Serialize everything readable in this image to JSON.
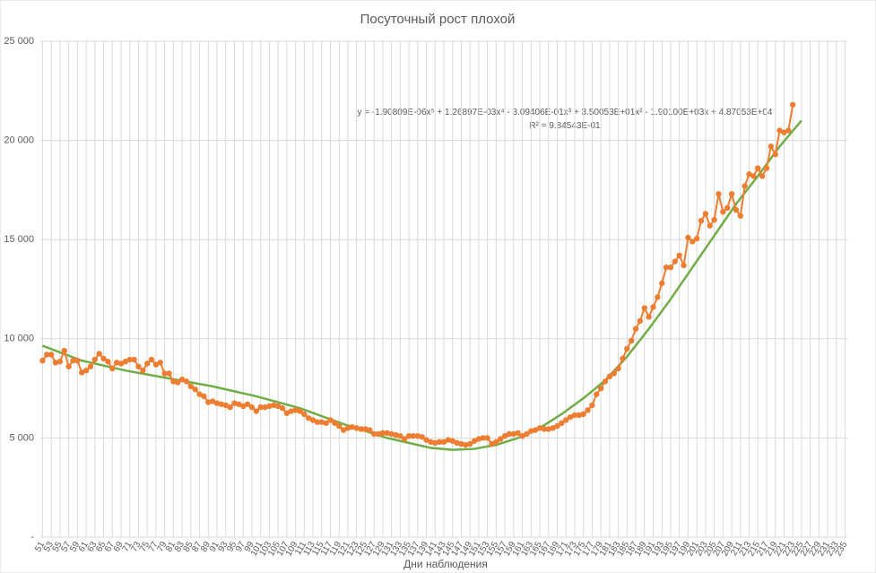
{
  "chart_data": {
    "type": "line",
    "title": "Посуточный рост плохой",
    "x_label": "Дни наблюдения",
    "annotations": [
      "y = -1.90809E-06x⁵ + 1.26897E-03x⁴ - 3.09406E-01x³ + 3.50053E+01x² - 1.90100E+03x + 4.87053E+04",
      "R² = 9.84543E-01"
    ],
    "xlim": [
      50.5,
      235.5
    ],
    "xticks": [
      51,
      53,
      55,
      57,
      59,
      61,
      63,
      65,
      67,
      69,
      71,
      73,
      75,
      77,
      79,
      81,
      83,
      85,
      87,
      89,
      91,
      93,
      95,
      97,
      99,
      101,
      103,
      105,
      107,
      109,
      111,
      113,
      115,
      117,
      119,
      121,
      123,
      125,
      127,
      129,
      131,
      133,
      135,
      137,
      139,
      141,
      143,
      145,
      147,
      149,
      151,
      153,
      155,
      157,
      159,
      161,
      163,
      165,
      167,
      169,
      171,
      173,
      175,
      177,
      179,
      181,
      183,
      185,
      187,
      189,
      191,
      193,
      195,
      197,
      199,
      201,
      203,
      205,
      207,
      209,
      211,
      213,
      215,
      217,
      219,
      221,
      223,
      225,
      227,
      229,
      231,
      233,
      235
    ],
    "ylim": [
      0,
      25000
    ],
    "yticks": [
      {
        "value": 0,
        "label": "-"
      },
      {
        "value": 5000,
        "label": "5 000"
      },
      {
        "value": 10000,
        "label": "10 000"
      },
      {
        "value": 15000,
        "label": "15 000"
      },
      {
        "value": 20000,
        "label": "20 000"
      },
      {
        "value": 25000,
        "label": "25 000"
      }
    ],
    "grid": true,
    "series": [
      {
        "color": "#ed7d31",
        "markers": true,
        "x": [
          51,
          52,
          53,
          54,
          55,
          56,
          57,
          58,
          59,
          60,
          61,
          62,
          63,
          64,
          65,
          66,
          67,
          68,
          69,
          70,
          71,
          72,
          73,
          74,
          75,
          76,
          77,
          78,
          79,
          80,
          81,
          82,
          83,
          84,
          85,
          86,
          87,
          88,
          89,
          90,
          91,
          92,
          93,
          94,
          95,
          96,
          97,
          98,
          99,
          100,
          101,
          102,
          103,
          104,
          105,
          106,
          107,
          108,
          109,
          110,
          111,
          112,
          113,
          114,
          115,
          116,
          117,
          118,
          119,
          120,
          121,
          122,
          123,
          124,
          125,
          126,
          127,
          128,
          129,
          130,
          131,
          132,
          133,
          134,
          135,
          136,
          137,
          138,
          139,
          140,
          141,
          142,
          143,
          144,
          145,
          146,
          147,
          148,
          149,
          150,
          151,
          152,
          153,
          154,
          155,
          156,
          157,
          158,
          159,
          160,
          161,
          162,
          163,
          164,
          165,
          166,
          167,
          168,
          169,
          170,
          171,
          172,
          173,
          174,
          175,
          176,
          177,
          178,
          179,
          180,
          181,
          182,
          183,
          184,
          185,
          186,
          187,
          188,
          189,
          190,
          191,
          192,
          193,
          194,
          195,
          196,
          197,
          198,
          199,
          200,
          201,
          202,
          203,
          204,
          205,
          206,
          207,
          208,
          209,
          210,
          211,
          212,
          213,
          214,
          215,
          216,
          217,
          218,
          219,
          220,
          221,
          222,
          223
        ],
        "values": [
          8900,
          9200,
          9200,
          8800,
          8850,
          9400,
          8600,
          8900,
          8900,
          8300,
          8400,
          8600,
          8950,
          9250,
          9000,
          8850,
          8500,
          8800,
          8750,
          8850,
          8950,
          8950,
          8600,
          8400,
          8750,
          8950,
          8700,
          8800,
          8250,
          8250,
          7850,
          7800,
          7950,
          7850,
          7600,
          7450,
          7200,
          7100,
          6800,
          6850,
          6750,
          6700,
          6650,
          6550,
          6750,
          6700,
          6600,
          6700,
          6550,
          6350,
          6550,
          6550,
          6600,
          6650,
          6600,
          6500,
          6250,
          6350,
          6400,
          6350,
          6200,
          6000,
          5900,
          5800,
          5800,
          5750,
          5900,
          5750,
          5600,
          5400,
          5500,
          5550,
          5500,
          5450,
          5450,
          5400,
          5200,
          5200,
          5250,
          5250,
          5200,
          5150,
          5100,
          4950,
          5100,
          5100,
          5100,
          5050,
          4900,
          4800,
          4750,
          4800,
          4800,
          4900,
          4850,
          4750,
          4700,
          4650,
          4700,
          4850,
          4950,
          5000,
          5000,
          4700,
          4800,
          4950,
          5100,
          5200,
          5200,
          5250,
          5100,
          5200,
          5350,
          5400,
          5500,
          5450,
          5450,
          5500,
          5600,
          5750,
          5900,
          6050,
          6150,
          6150,
          6200,
          6400,
          6650,
          7200,
          7500,
          7850,
          8100,
          8250,
          8500,
          9000,
          9500,
          9900,
          10500,
          10900,
          11550,
          11100,
          11600,
          12100,
          12800,
          13600,
          13600,
          13900,
          14200,
          13700,
          15100,
          14900,
          15050,
          15950,
          16300,
          15700,
          16000,
          17300,
          16400,
          16600,
          17300,
          16500,
          16200,
          17700,
          18300,
          18200,
          18600,
          18200,
          18600,
          19700,
          19300,
          20500,
          20400,
          20500,
          21800
        ]
      },
      {
        "color": "#70ad47",
        "markers": false,
        "x": [
          51,
          60,
          70,
          80,
          90,
          100,
          110,
          120,
          130,
          140,
          145,
          150,
          155,
          160,
          165,
          170,
          175,
          180,
          185,
          190,
          195,
          200,
          205,
          210,
          215,
          220,
          225
        ],
        "values": [
          9650,
          8900,
          8400,
          8000,
          7600,
          7100,
          6500,
          5700,
          5000,
          4500,
          4400,
          4450,
          4650,
          5000,
          5500,
          6200,
          7000,
          7900,
          9100,
          10500,
          12000,
          13600,
          15200,
          16800,
          18200,
          19700,
          21000
        ]
      }
    ]
  }
}
